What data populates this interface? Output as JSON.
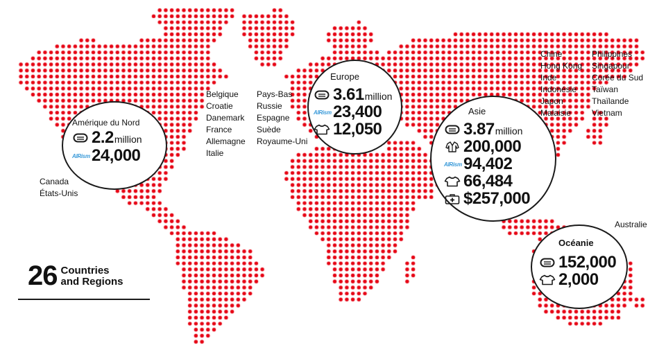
{
  "colors": {
    "dot": "#e60012",
    "ink": "#1a1a1a",
    "airism": "#3a9ad9"
  },
  "headline": {
    "number": "26",
    "line1": "Countries",
    "line2": "and Regions"
  },
  "north_america": {
    "countries": [
      "Canada",
      "États-Unis"
    ],
    "title": "Amérique du Nord",
    "masks": "2.2",
    "masks_unit": "million",
    "airism_label": "AIRism",
    "airism": "24,000"
  },
  "europe": {
    "countries_col1": [
      "Belgique",
      "Croatie",
      "Danemark",
      "France",
      "Allemagne",
      "Italie"
    ],
    "countries_col2": [
      "Pays-Bas",
      "Russie",
      "Espagne",
      "Suède",
      "Royaume-Uni"
    ],
    "title": "Europe",
    "masks": "3.61",
    "masks_unit": "million",
    "airism_label": "AIRism",
    "airism": "23,400",
    "clothing": "12,050"
  },
  "asia": {
    "countries_col1": [
      "Chine",
      "Hong Kong",
      "Inde",
      "Indonésie",
      "Japon",
      "Malaisie"
    ],
    "countries_col2": [
      "Philippines",
      "Singapour",
      "Corée du Sud",
      "Taïwan",
      "Thaïlande",
      "Vietnam"
    ],
    "title": "Asie",
    "masks": "3.87",
    "masks_unit": "million",
    "gowns": "200,000",
    "airism_label": "AIRism",
    "airism": "94,402",
    "clothing": "66,484",
    "funds": "$257,000"
  },
  "oceania": {
    "countries": [
      "Australie"
    ],
    "title": "Océanie",
    "masks": "152,000",
    "clothing": "2,000"
  },
  "icons": [
    "mask-icon",
    "gown-icon",
    "airism-logo",
    "tshirt-icon",
    "medical-kit-icon"
  ]
}
